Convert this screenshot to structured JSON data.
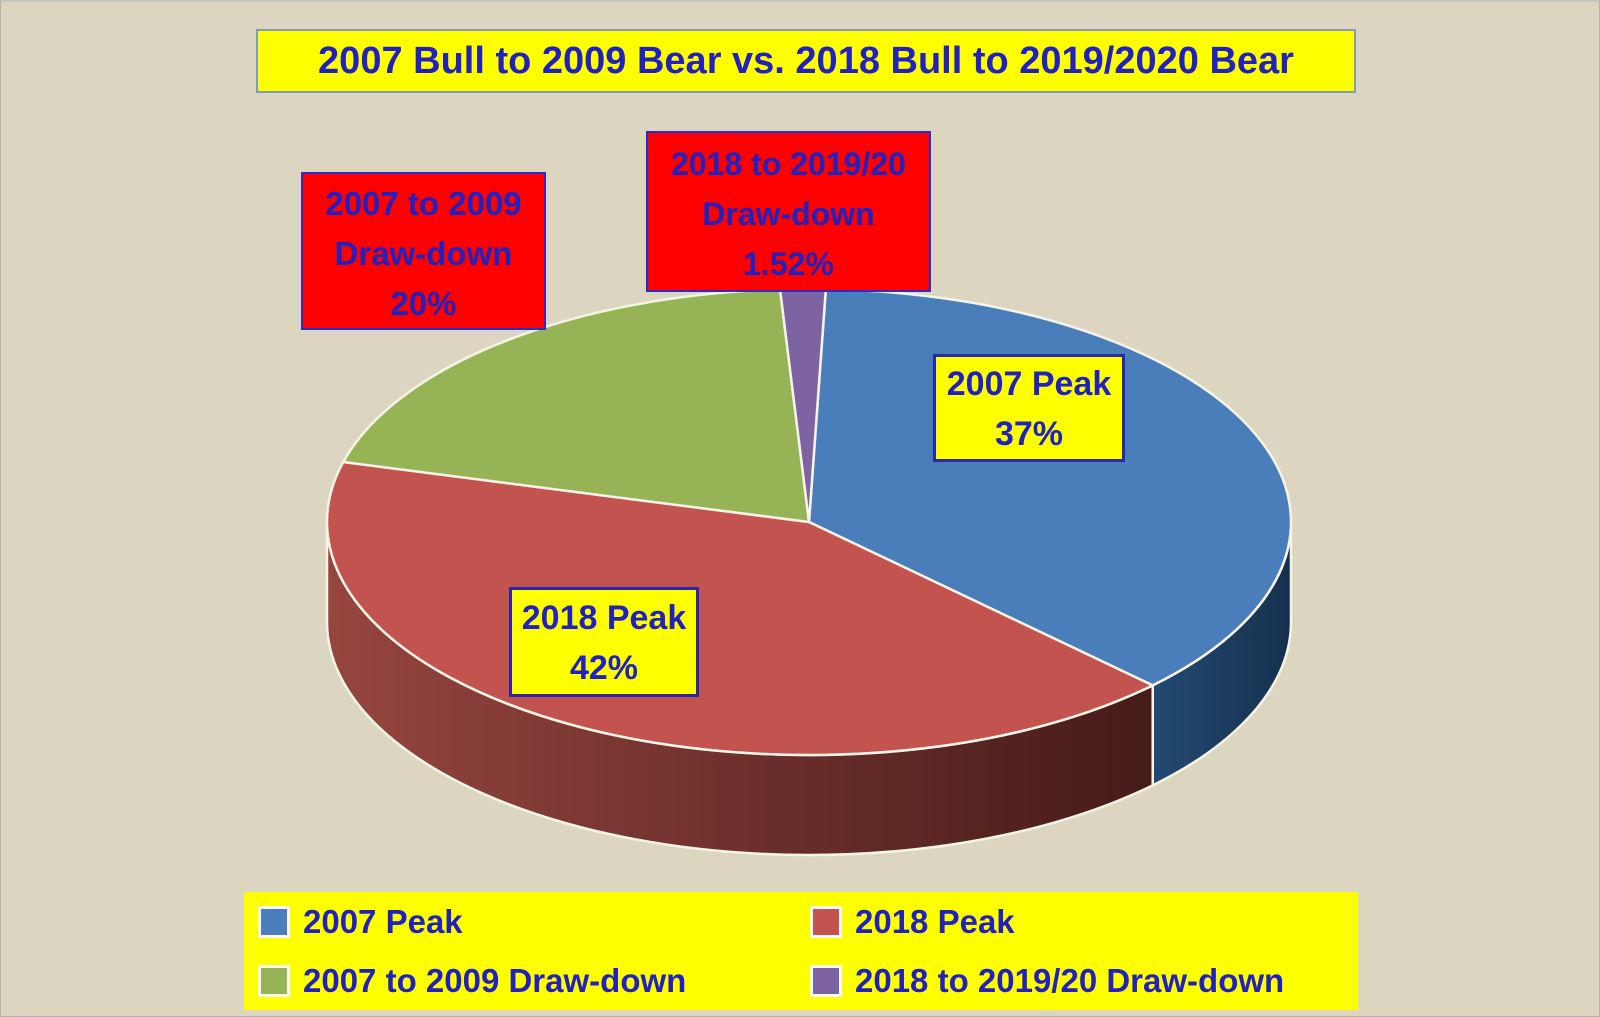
{
  "title": {
    "text": "2007 Bull to 2009 Bear vs. 2018 Bull to 2019/2020 Bear"
  },
  "chart_data": {
    "type": "pie",
    "style": "3d-pie",
    "title": "2007 Bull to 2009 Bear vs. 2018 Bull to 2019/2020 Bear",
    "labels": [
      "2007 Peak",
      "2018 Peak",
      "2007 to 2009 Draw-down",
      "2018 to 2019/20 Draw-down"
    ],
    "values": [
      37,
      42,
      20,
      1.52
    ],
    "value_labels": [
      "37%",
      "42%",
      "20%",
      "1.52%"
    ],
    "colors": [
      "#4a7ebb",
      "#c3534f",
      "#96b355",
      "#7d63a2"
    ],
    "side_gradients": [
      [
        "#234a72",
        "#16304e"
      ],
      [
        "#96453f",
        "#451b19"
      ],
      [
        "#5e7a35",
        "#49602a"
      ],
      [
        "#4d3a66",
        "#3e2f55"
      ]
    ],
    "start_angle_deg": 2,
    "legend_position": "bottom",
    "grid": false
  },
  "callouts": [
    {
      "lines": [
        "2007 to 2009",
        "Draw-down",
        "20%"
      ],
      "bg": "#ff0000"
    },
    {
      "lines": [
        "2018 to 2019/20",
        "Draw-down",
        "1.52%"
      ],
      "bg": "#ff0000"
    },
    {
      "lines": [
        "2007 Peak",
        "37%"
      ],
      "bg": "#ffff00"
    },
    {
      "lines": [
        "2018 Peak",
        "42%"
      ],
      "bg": "#ffff00"
    }
  ],
  "legend": {
    "items": [
      {
        "label": "2007 Peak",
        "color": "#4a7ebb"
      },
      {
        "label": "2018 Peak",
        "color": "#c3534f"
      },
      {
        "label": "2007 to 2009 Draw-down",
        "color": "#96b355"
      },
      {
        "label": "2018 to 2019/20 Draw-down",
        "color": "#7d63a2"
      }
    ]
  },
  "colors": {
    "background": "#dcd6c1",
    "text_blue": "#2121c0",
    "label_bg_red": "#ff0000",
    "label_bg_yellow": "#ffff00",
    "title_border": "#7f9cbd"
  }
}
